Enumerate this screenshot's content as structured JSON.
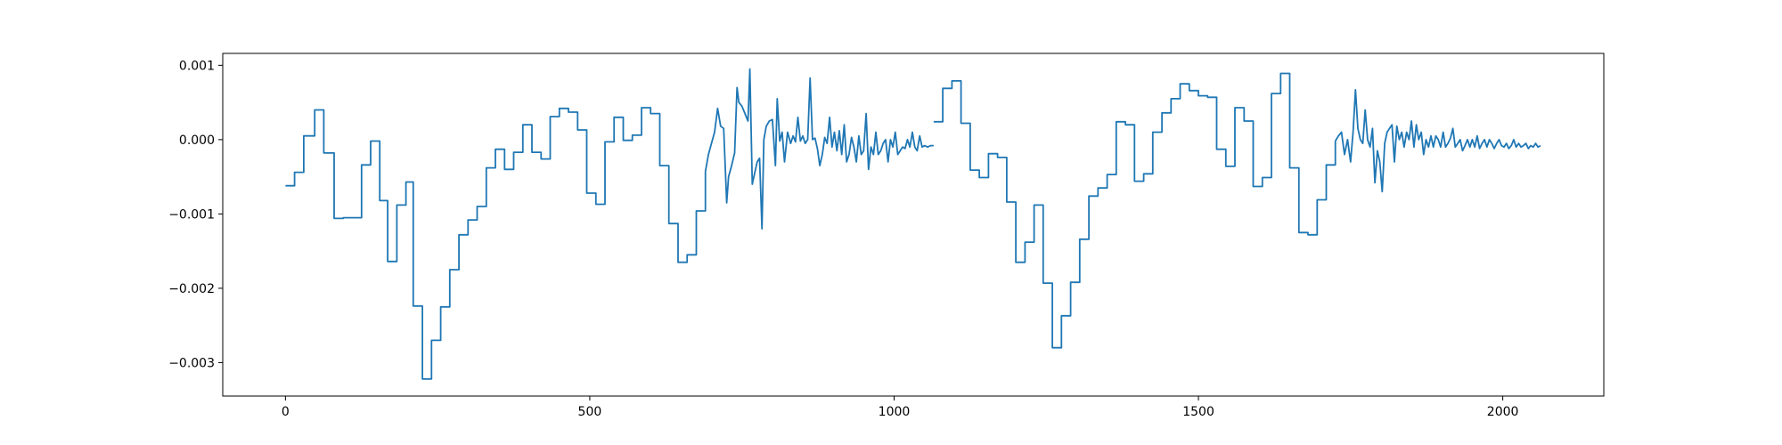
{
  "chart_data": {
    "type": "line",
    "title": "",
    "xlabel": "",
    "ylabel": "",
    "xlim": [
      -103,
      2166
    ],
    "ylim": [
      -0.00345,
      0.00116
    ],
    "grid": false,
    "x_ticks": [
      0,
      500,
      1000,
      1500,
      2000
    ],
    "x_tick_labels": [
      "0",
      "500",
      "1000",
      "1500",
      "2000"
    ],
    "y_ticks": [
      0.001,
      0.0,
      -0.001,
      -0.002,
      -0.003
    ],
    "y_tick_labels": [
      "0.001",
      "0.000",
      "−0.001",
      "−0.002",
      "−0.003"
    ],
    "series": [
      {
        "color": "#1f77b4",
        "steps": [
          [
            0,
            -0.00062
          ],
          [
            15,
            -0.00044
          ],
          [
            30,
            5e-05
          ],
          [
            48,
            0.0004
          ],
          [
            63,
            -0.00018
          ],
          [
            80,
            -0.00106
          ],
          [
            95,
            -0.00105
          ],
          [
            108,
            -0.00105
          ],
          [
            125,
            -0.00034
          ],
          [
            140,
            -2e-05
          ],
          [
            155,
            -0.00082
          ],
          [
            168,
            -0.00164
          ],
          [
            183,
            -0.00088
          ],
          [
            198,
            -0.00057
          ],
          [
            210,
            -0.00224
          ],
          [
            225,
            -0.00322
          ],
          [
            240,
            -0.0027
          ],
          [
            255,
            -0.00225
          ],
          [
            270,
            -0.00175
          ],
          [
            285,
            -0.00128
          ],
          [
            300,
            -0.00108
          ],
          [
            315,
            -0.0009
          ],
          [
            330,
            -0.00038
          ],
          [
            345,
            -0.00013
          ],
          [
            360,
            -0.0004
          ],
          [
            375,
            -0.00017
          ],
          [
            390,
            0.0002
          ],
          [
            405,
            -0.00017
          ],
          [
            420,
            -0.00026
          ],
          [
            435,
            0.00031
          ],
          [
            450,
            0.00042
          ],
          [
            465,
            0.00037
          ],
          [
            480,
            0.00013
          ],
          [
            495,
            -0.00072
          ],
          [
            510,
            -0.00087
          ],
          [
            525,
            -3e-05
          ],
          [
            540,
            0.0003
          ],
          [
            555,
            -1e-05
          ],
          [
            570,
            6e-05
          ],
          [
            585,
            0.00043
          ],
          [
            600,
            0.00035
          ],
          [
            615,
            -0.00035
          ],
          [
            630,
            -0.00113
          ],
          [
            645,
            -0.00165
          ],
          [
            660,
            -0.00155
          ],
          [
            675,
            -0.00096
          ],
          [
            690,
            -0.00043
          ]
        ],
        "noisy_a": [
          [
            690,
            -0.00043
          ],
          [
            695,
            -0.0002
          ],
          [
            700,
            -5e-05
          ],
          [
            705,
            0.0001
          ],
          [
            710,
            0.00042
          ],
          [
            715,
            0.00018
          ],
          [
            720,
            0.00015
          ],
          [
            725,
            -0.00085
          ],
          [
            728,
            -0.0005
          ],
          [
            733,
            -0.00035
          ],
          [
            738,
            -0.00018
          ],
          [
            742,
            0.0007
          ],
          [
            745,
            0.0005
          ],
          [
            750,
            0.00045
          ],
          [
            755,
            0.00035
          ],
          [
            760,
            0.00025
          ],
          [
            763,
            0.00095
          ],
          [
            767,
            -0.0006
          ],
          [
            771,
            -0.00045
          ],
          [
            775,
            -0.0003
          ],
          [
            779,
            -0.00025
          ],
          [
            783,
            -0.0012
          ],
          [
            786,
            0.0
          ],
          [
            790,
            0.00018
          ],
          [
            795,
            0.00025
          ],
          [
            800,
            0.00027
          ],
          [
            805,
            -0.00035
          ],
          [
            808,
            0.00055
          ],
          [
            812,
            -2e-05
          ],
          [
            816,
            0.0001
          ],
          [
            820,
            -0.0003
          ],
          [
            825,
            0.0001
          ],
          [
            830,
            -5e-05
          ],
          [
            834,
            5e-05
          ],
          [
            838,
            -3e-05
          ],
          [
            842,
            0.0003
          ],
          [
            846,
            -2e-05
          ],
          [
            850,
            5e-05
          ],
          [
            854,
            -5e-05
          ],
          [
            858,
            0.0
          ],
          [
            862,
            0.00083
          ],
          [
            866,
            0.0
          ],
          [
            870,
            2e-05
          ],
          [
            874,
            -0.00012
          ],
          [
            878,
            -0.00035
          ],
          [
            882,
            -0.0002
          ],
          [
            886,
            3e-05
          ],
          [
            890,
            -5e-05
          ],
          [
            894,
            0.0003
          ],
          [
            898,
            -0.0001
          ],
          [
            902,
            0.0001
          ],
          [
            906,
            -0.00015
          ],
          [
            910,
            0.00012
          ],
          [
            914,
            -0.0002
          ],
          [
            918,
            0.0002
          ],
          [
            922,
            -0.0003
          ],
          [
            926,
            -0.0002
          ],
          [
            930,
            3e-05
          ],
          [
            934,
            -0.0001
          ],
          [
            938,
            -0.0003
          ],
          [
            942,
            5e-05
          ],
          [
            946,
            -0.0002
          ],
          [
            950,
            -0.00015
          ],
          [
            954,
            0.00035
          ],
          [
            958,
            -0.0004
          ],
          [
            962,
            -0.0001
          ],
          [
            966,
            -0.0002
          ],
          [
            970,
            0.0001
          ],
          [
            974,
            -0.0002
          ],
          [
            978,
            -0.00015
          ],
          [
            982,
            -5e-05
          ],
          [
            986,
            0.0
          ],
          [
            990,
            -0.0003
          ],
          [
            994,
            0.0
          ],
          [
            998,
            -0.0001
          ],
          [
            1002,
            0.0001
          ],
          [
            1006,
            -0.0002
          ],
          [
            1010,
            -0.00015
          ],
          [
            1014,
            -0.0001
          ],
          [
            1018,
            -0.00012
          ],
          [
            1022,
            0.0
          ],
          [
            1026,
            -0.0001
          ],
          [
            1030,
            0.0001
          ],
          [
            1034,
            -0.0001
          ],
          [
            1038,
            -0.00015
          ],
          [
            1042,
            5e-05
          ],
          [
            1046,
            -0.0001
          ],
          [
            1050,
            -8e-05
          ],
          [
            1055,
            -0.0001
          ],
          [
            1060,
            -8e-05
          ],
          [
            1065,
            -8e-05
          ]
        ],
        "steps_b": [
          [
            1065,
            0.00024
          ],
          [
            1080,
            0.00069
          ],
          [
            1095,
            0.00079
          ],
          [
            1110,
            0.00022
          ],
          [
            1125,
            -0.00041
          ],
          [
            1140,
            -0.00051
          ],
          [
            1155,
            -0.00019
          ],
          [
            1170,
            -0.00024
          ],
          [
            1185,
            -0.00084
          ],
          [
            1200,
            -0.00165
          ],
          [
            1215,
            -0.00138
          ],
          [
            1230,
            -0.00088
          ],
          [
            1245,
            -0.00193
          ],
          [
            1260,
            -0.0028
          ],
          [
            1275,
            -0.00237
          ],
          [
            1290,
            -0.00192
          ],
          [
            1305,
            -0.00134
          ],
          [
            1320,
            -0.00076
          ],
          [
            1335,
            -0.00065
          ],
          [
            1350,
            -0.00047
          ],
          [
            1365,
            0.00024
          ],
          [
            1380,
            0.0002
          ],
          [
            1395,
            -0.00056
          ],
          [
            1410,
            -0.00046
          ],
          [
            1425,
            0.0001
          ],
          [
            1440,
            0.00036
          ],
          [
            1455,
            0.00055
          ],
          [
            1470,
            0.00075
          ],
          [
            1485,
            0.00066
          ],
          [
            1500,
            0.00059
          ],
          [
            1515,
            0.00057
          ],
          [
            1530,
            -0.00013
          ],
          [
            1545,
            -0.00036
          ],
          [
            1560,
            0.00043
          ],
          [
            1575,
            0.00025
          ],
          [
            1590,
            -0.00063
          ],
          [
            1605,
            -0.00051
          ],
          [
            1620,
            0.00062
          ],
          [
            1635,
            0.00089
          ],
          [
            1650,
            -0.00038
          ],
          [
            1665,
            -0.00125
          ],
          [
            1680,
            -0.00128
          ],
          [
            1695,
            -0.00081
          ],
          [
            1710,
            -0.00034
          ],
          [
            1725,
            -2e-05
          ]
        ],
        "noisy_b": [
          [
            1725,
            -2e-05
          ],
          [
            1730,
            5e-05
          ],
          [
            1735,
            0.0001
          ],
          [
            1740,
            -0.0002
          ],
          [
            1745,
            0.0
          ],
          [
            1750,
            -0.0003
          ],
          [
            1754,
            0.0001
          ],
          [
            1758,
            0.00067
          ],
          [
            1762,
            0.00015
          ],
          [
            1766,
            0.0
          ],
          [
            1770,
            -5e-05
          ],
          [
            1774,
            0.0004
          ],
          [
            1778,
            0.0
          ],
          [
            1782,
            -0.0001
          ],
          [
            1786,
            0.00015
          ],
          [
            1790,
            -0.00058
          ],
          [
            1794,
            -0.00015
          ],
          [
            1798,
            -0.0003
          ],
          [
            1802,
            -0.0007
          ],
          [
            1806,
            -5e-05
          ],
          [
            1810,
            0.0001
          ],
          [
            1814,
            0.00015
          ],
          [
            1818,
            0.0002
          ],
          [
            1822,
            -0.0003
          ],
          [
            1826,
            0.00018
          ],
          [
            1830,
            0.0
          ],
          [
            1834,
            0.0001
          ],
          [
            1838,
            -0.0001
          ],
          [
            1842,
            0.0001
          ],
          [
            1846,
            0.0
          ],
          [
            1850,
            0.00025
          ],
          [
            1854,
            -0.0001
          ],
          [
            1858,
            0.0002
          ],
          [
            1862,
            0.0
          ],
          [
            1866,
            0.0001
          ],
          [
            1870,
            -0.0002
          ],
          [
            1874,
            0.0
          ],
          [
            1878,
            -0.0001
          ],
          [
            1882,
            5e-05
          ],
          [
            1886,
            -0.0001
          ],
          [
            1890,
            5e-05
          ],
          [
            1894,
            0.0
          ],
          [
            1898,
            -0.0001
          ],
          [
            1902,
            0.0001
          ],
          [
            1906,
            -0.0001
          ],
          [
            1910,
            -5e-05
          ],
          [
            1914,
            2e-05
          ],
          [
            1918,
            0.00015
          ],
          [
            1922,
            -0.0001
          ],
          [
            1926,
            -5e-05
          ],
          [
            1930,
            0.0
          ],
          [
            1934,
            -0.00015
          ],
          [
            1938,
            -8e-05
          ],
          [
            1942,
            0.0
          ],
          [
            1946,
            -0.0001
          ],
          [
            1950,
            0.0
          ],
          [
            1954,
            -0.0001
          ],
          [
            1958,
            5e-05
          ],
          [
            1962,
            -0.00012
          ],
          [
            1966,
            -5e-05
          ],
          [
            1970,
            0.0
          ],
          [
            1974,
            -0.0001
          ],
          [
            1978,
            0.0
          ],
          [
            1982,
            -5e-05
          ],
          [
            1986,
            -0.00012
          ],
          [
            1990,
            -5e-05
          ],
          [
            1994,
            0.0
          ],
          [
            1998,
            -8e-05
          ],
          [
            2002,
            -0.0001
          ],
          [
            2006,
            -5e-05
          ],
          [
            2010,
            -0.00012
          ],
          [
            2014,
            -8e-05
          ],
          [
            2018,
            0.0
          ],
          [
            2022,
            -0.0001
          ],
          [
            2026,
            -5e-05
          ],
          [
            2030,
            -0.0001
          ],
          [
            2034,
            -8e-05
          ],
          [
            2038,
            -5e-05
          ],
          [
            2042,
            -0.00012
          ],
          [
            2046,
            -8e-05
          ],
          [
            2050,
            -0.0001
          ],
          [
            2054,
            -5e-05
          ],
          [
            2058,
            -0.0001
          ],
          [
            2062,
            -8e-05
          ]
        ]
      }
    ]
  }
}
